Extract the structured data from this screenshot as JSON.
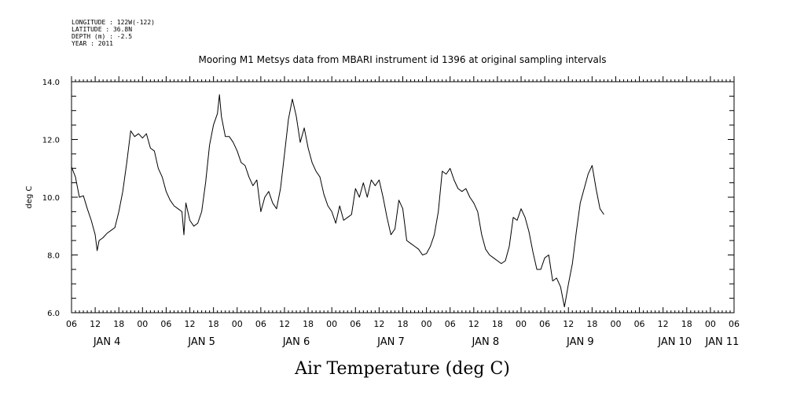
{
  "meta": {
    "longitude": "LONGITUDE : 122W(-122)",
    "latitude": "LATITUDE : 36.8N",
    "depth": "DEPTH (m) : -2.5",
    "year": "YEAR : 2011"
  },
  "chart_data": {
    "type": "line",
    "title": "Mooring M1 Metsys data from MBARI instrument id 1396 at original sampling intervals",
    "xlabel": "Air Temperature (deg C)",
    "ylabel": "deg C",
    "ylim": [
      6.0,
      14.0
    ],
    "y_ticks": [
      "6.0",
      "8.0",
      "10.0",
      "12.0",
      "14.0"
    ],
    "x_range_hours": [
      0,
      168
    ],
    "hour_ticks": [
      "06",
      "12",
      "18",
      "00",
      "06",
      "12",
      "18",
      "00",
      "06",
      "12",
      "18",
      "00",
      "06",
      "12",
      "18",
      "00",
      "06",
      "12",
      "18",
      "00",
      "06",
      "12",
      "18",
      "00",
      "06",
      "12",
      "18",
      "00",
      "06"
    ],
    "day_labels": [
      "JAN 4",
      "JAN 5",
      "JAN 6",
      "JAN 7",
      "JAN 8",
      "JAN 9",
      "JAN 10",
      "JAN 11"
    ],
    "grid": false,
    "series": [
      {
        "points": [
          [
            0,
            11.05
          ],
          [
            1,
            10.7
          ],
          [
            2,
            10.0
          ],
          [
            3,
            10.05
          ],
          [
            4,
            9.6
          ],
          [
            5,
            9.2
          ],
          [
            6,
            8.7
          ],
          [
            6.5,
            8.15
          ],
          [
            7,
            8.5
          ],
          [
            8,
            8.6
          ],
          [
            9,
            8.75
          ],
          [
            10,
            8.85
          ],
          [
            11,
            8.95
          ],
          [
            12,
            9.5
          ],
          [
            13,
            10.2
          ],
          [
            14,
            11.2
          ],
          [
            15,
            12.3
          ],
          [
            16,
            12.1
          ],
          [
            17,
            12.2
          ],
          [
            18,
            12.05
          ],
          [
            19,
            12.2
          ],
          [
            20,
            11.7
          ],
          [
            21,
            11.6
          ],
          [
            22,
            11.0
          ],
          [
            23,
            10.7
          ],
          [
            24,
            10.2
          ],
          [
            25,
            9.9
          ],
          [
            26,
            9.7
          ],
          [
            27,
            9.6
          ],
          [
            28,
            9.5
          ],
          [
            28.5,
            8.7
          ],
          [
            29,
            9.8
          ],
          [
            30,
            9.2
          ],
          [
            31,
            9.0
          ],
          [
            32,
            9.1
          ],
          [
            33,
            9.5
          ],
          [
            34,
            10.5
          ],
          [
            35,
            11.8
          ],
          [
            36,
            12.5
          ],
          [
            37,
            12.9
          ],
          [
            37.5,
            13.55
          ],
          [
            38,
            12.8
          ],
          [
            39,
            12.1
          ],
          [
            40,
            12.1
          ],
          [
            41,
            11.9
          ],
          [
            42,
            11.6
          ],
          [
            43,
            11.2
          ],
          [
            44,
            11.1
          ],
          [
            45,
            10.7
          ],
          [
            46,
            10.4
          ],
          [
            47,
            10.6
          ],
          [
            48,
            9.5
          ],
          [
            49,
            10.0
          ],
          [
            50,
            10.2
          ],
          [
            51,
            9.8
          ],
          [
            52,
            9.6
          ],
          [
            53,
            10.3
          ],
          [
            54,
            11.5
          ],
          [
            55,
            12.7
          ],
          [
            56,
            13.4
          ],
          [
            57,
            12.8
          ],
          [
            58,
            11.9
          ],
          [
            59,
            12.4
          ],
          [
            60,
            11.7
          ],
          [
            61,
            11.2
          ],
          [
            62,
            10.9
          ],
          [
            63,
            10.7
          ],
          [
            64,
            10.1
          ],
          [
            65,
            9.7
          ],
          [
            66,
            9.5
          ],
          [
            67,
            9.1
          ],
          [
            68,
            9.7
          ],
          [
            69,
            9.2
          ],
          [
            70,
            9.3
          ],
          [
            71,
            9.4
          ],
          [
            72,
            10.3
          ],
          [
            73,
            10.0
          ],
          [
            74,
            10.5
          ],
          [
            75,
            10.0
          ],
          [
            76,
            10.6
          ],
          [
            77,
            10.4
          ],
          [
            78,
            10.6
          ],
          [
            79,
            10.0
          ],
          [
            80,
            9.3
          ],
          [
            81,
            8.7
          ],
          [
            82,
            8.9
          ],
          [
            83,
            9.9
          ],
          [
            84,
            9.6
          ],
          [
            85,
            8.5
          ],
          [
            86,
            8.4
          ],
          [
            87,
            8.3
          ],
          [
            88,
            8.2
          ],
          [
            89,
            8.0
          ],
          [
            90,
            8.05
          ],
          [
            91,
            8.3
          ],
          [
            92,
            8.7
          ],
          [
            93,
            9.5
          ],
          [
            94,
            10.9
          ],
          [
            95,
            10.8
          ],
          [
            96,
            11.0
          ],
          [
            97,
            10.6
          ],
          [
            98,
            10.3
          ],
          [
            99,
            10.2
          ],
          [
            100,
            10.3
          ],
          [
            101,
            10.0
          ],
          [
            102,
            9.8
          ],
          [
            103,
            9.5
          ],
          [
            104,
            8.7
          ],
          [
            105,
            8.2
          ],
          [
            106,
            8.0
          ],
          [
            107,
            7.9
          ],
          [
            108,
            7.8
          ],
          [
            109,
            7.7
          ],
          [
            110,
            7.8
          ],
          [
            111,
            8.3
          ],
          [
            112,
            9.3
          ],
          [
            113,
            9.2
          ],
          [
            114,
            9.6
          ],
          [
            115,
            9.3
          ],
          [
            116,
            8.8
          ],
          [
            117,
            8.1
          ],
          [
            118,
            7.5
          ],
          [
            119,
            7.5
          ],
          [
            120,
            7.9
          ],
          [
            121,
            8.0
          ],
          [
            122,
            7.1
          ],
          [
            123,
            7.2
          ],
          [
            124,
            6.9
          ],
          [
            125,
            6.2
          ],
          [
            126,
            7.0
          ],
          [
            127,
            7.7
          ],
          [
            128,
            8.8
          ],
          [
            129,
            9.8
          ],
          [
            130,
            10.3
          ],
          [
            131,
            10.8
          ],
          [
            132,
            11.1
          ],
          [
            133,
            10.3
          ],
          [
            134,
            9.6
          ],
          [
            135,
            9.4
          ]
        ]
      }
    ]
  }
}
